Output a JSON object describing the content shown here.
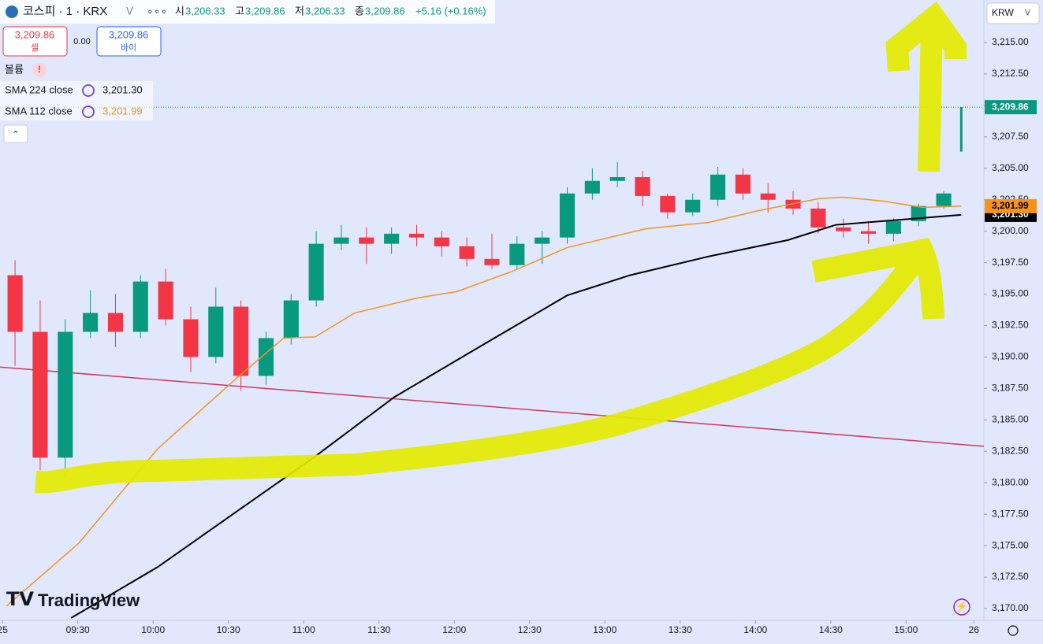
{
  "ui": {
    "symbol": "코스피 · 1 · KRX",
    "ohlc": [
      {
        "label": "시",
        "value": "3,206.33"
      },
      {
        "label": "고",
        "value": "3,209.86"
      },
      {
        "label": "저",
        "value": "3,206.33"
      },
      {
        "label": "종",
        "value": "3,209.86"
      }
    ],
    "change": "+5.16 (+0.16%)",
    "sell": {
      "price": "3,209.86",
      "label": "셀"
    },
    "spread": "0.00",
    "buy": {
      "price": "3,209.86",
      "label": "바이"
    },
    "volume_label": "볼륨",
    "currency": "KRW",
    "logo": "TradingView"
  },
  "chart_data": {
    "type": "candlestick",
    "up_color": "#089981",
    "down_color": "#f23645",
    "last_label": "3,209.86",
    "x": [
      5,
      15,
      25,
      35,
      45,
      55,
      65,
      75,
      85,
      95,
      105,
      115,
      125,
      135,
      145,
      155,
      165,
      175,
      185,
      195,
      205,
      215,
      225,
      235,
      245,
      255,
      265,
      275,
      285,
      295,
      305,
      315,
      325,
      335,
      345,
      355,
      365,
      375,
      382
    ],
    "open": [
      3196.5,
      3192,
      3182,
      3192,
      3193.5,
      3192,
      3196,
      3193,
      3190,
      3194,
      3188.5,
      3191.5,
      3194.5,
      3199,
      3199.5,
      3199,
      3199.8,
      3199.5,
      3198.8,
      3197.8,
      3197.3,
      3199,
      3199.5,
      3203,
      3204,
      3204.3,
      3202.8,
      3201.5,
      3202.5,
      3204.5,
      3203,
      3202.5,
      3201.8,
      3200.3,
      3200,
      3199.8,
      3200.8,
      3202,
      3206.33
    ],
    "high": [
      3197.7,
      3194.5,
      3193,
      3195.3,
      3195,
      3196.5,
      3197,
      3194,
      3195.5,
      3194.5,
      3192,
      3195,
      3200,
      3200.5,
      3200.3,
      3200.3,
      3200.5,
      3200,
      3199.5,
      3199.8,
      3199.6,
      3200,
      3203.5,
      3205,
      3205.5,
      3204.8,
      3203,
      3203,
      3205.1,
      3205,
      3203.8,
      3203.2,
      3202.3,
      3201,
      3200.8,
      3201,
      3202.2,
      3203.2,
      3209.86
    ],
    "low": [
      3189.3,
      3181,
      3180.4,
      3191.5,
      3190.8,
      3191.5,
      3192.5,
      3188.8,
      3189.5,
      3187.3,
      3187.8,
      3191,
      3194,
      3198.5,
      3197.4,
      3198.2,
      3198.8,
      3198,
      3197.2,
      3197,
      3197,
      3197.4,
      3199,
      3202.5,
      3203.5,
      3202,
      3201,
      3201.2,
      3202,
      3202.5,
      3201.5,
      3201.3,
      3199.8,
      3199.5,
      3199,
      3199.2,
      3200.4,
      3201.8,
      3206.33
    ],
    "close": [
      3192,
      3182,
      3192,
      3193.5,
      3192,
      3196,
      3193,
      3190,
      3194,
      3188.5,
      3191.5,
      3194.5,
      3199,
      3199.5,
      3199,
      3199.8,
      3199.5,
      3198.8,
      3197.8,
      3197.3,
      3199,
      3199.5,
      3203,
      3204,
      3204.3,
      3202.8,
      3201.5,
      3202.5,
      3204.5,
      3203,
      3202.5,
      3201.8,
      3200.3,
      3200,
      3199.8,
      3200.8,
      3202,
      3203,
      3209.86
    ],
    "series": [
      {
        "name": "SMA 224 close",
        "color": "#000000",
        "last_label": "3,201.30",
        "x": [
          27.3,
          61.8,
          93.2,
          124.6,
          156,
          187.4,
          225,
          250,
          281.5,
          313,
          331.9,
          357,
          382
        ],
        "values": [
          3169.25,
          3173.3,
          3177.7,
          3182.1,
          3186.8,
          3190.5,
          3194.9,
          3196.5,
          3198,
          3199.3,
          3200.5,
          3200.9,
          3201.3
        ]
      },
      {
        "name": "SMA 112 close",
        "color": "#f7931a",
        "last_label": "3,201.99",
        "x": [
          1.6,
          30.4,
          61.8,
          93.2,
          112,
          124.6,
          140.3,
          165.4,
          181,
          203,
          225,
          256.4,
          281.5,
          300.4,
          325.5,
          335,
          350.7,
          366.4,
          382
        ],
        "values": [
          3170.2,
          3175.2,
          3182.7,
          3188.3,
          3191.5,
          3191.6,
          3193.5,
          3194.7,
          3195.2,
          3196.8,
          3198.7,
          3200.2,
          3200.7,
          3201.6,
          3202.6,
          3202.7,
          3202.4,
          3201.9,
          3201.99
        ]
      }
    ],
    "trendline": {
      "color": "#d6365a",
      "x": [
        -1,
        391
      ],
      "y": [
        3189.2,
        3182.9
      ]
    },
    "xlim": [
      -1,
      391
    ],
    "ylim": [
      3169.25,
      3218.38
    ],
    "xticks": [
      {
        "value": 0,
        "label": "25"
      },
      {
        "value": 30,
        "label": "09:30"
      },
      {
        "value": 60,
        "label": "10:00"
      },
      {
        "value": 90,
        "label": "10:30"
      },
      {
        "value": 120,
        "label": "11:00"
      },
      {
        "value": 150,
        "label": "11:30"
      },
      {
        "value": 180,
        "label": "12:00"
      },
      {
        "value": 210,
        "label": "12:30"
      },
      {
        "value": 240,
        "label": "13:00"
      },
      {
        "value": 270,
        "label": "13:30"
      },
      {
        "value": 300,
        "label": "14:00"
      },
      {
        "value": 330,
        "label": "14:30"
      },
      {
        "value": 360,
        "label": "15:00"
      },
      {
        "value": 387,
        "label": "26"
      }
    ],
    "yticks": [
      {
        "value": 3170,
        "label": "3,170.00"
      },
      {
        "value": 3172.5,
        "label": "3,172.50"
      },
      {
        "value": 3175,
        "label": "3,175.00"
      },
      {
        "value": 3177.5,
        "label": "3,177.50"
      },
      {
        "value": 3180,
        "label": "3,180.00"
      },
      {
        "value": 3182.5,
        "label": "3,182.50"
      },
      {
        "value": 3185,
        "label": "3,185.00"
      },
      {
        "value": 3187.5,
        "label": "3,187.50"
      },
      {
        "value": 3190,
        "label": "3,190.00"
      },
      {
        "value": 3192.5,
        "label": "3,192.50"
      },
      {
        "value": 3195,
        "label": "3,195.00"
      },
      {
        "value": 3197.5,
        "label": "3,197.50"
      },
      {
        "value": 3200,
        "label": "3,200.00"
      },
      {
        "value": 3202.5,
        "label": "3,202.50"
      },
      {
        "value": 3205,
        "label": "3,205.00"
      },
      {
        "value": 3207.5,
        "label": "3,207.50"
      },
      {
        "value": 3210,
        "label": "3,210.00"
      },
      {
        "value": 3212.5,
        "label": "3,212.50"
      },
      {
        "value": 3215,
        "label": "3,215.00"
      }
    ]
  }
}
